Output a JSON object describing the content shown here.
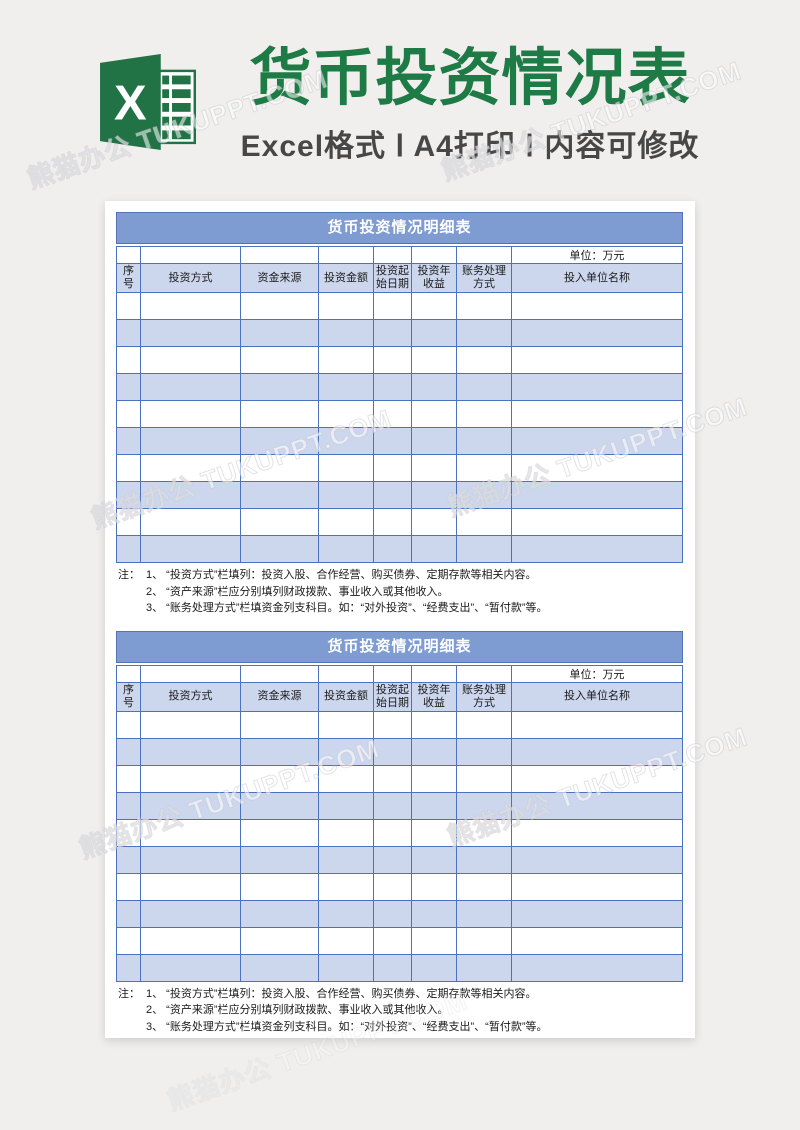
{
  "header": {
    "title": "货币投资情况表",
    "subtitle": "Excel格式 Ⅰ A4打印 Ⅰ 内容可修改",
    "logo_letter": "X"
  },
  "watermark": {
    "text": "熊猫办公 TUKUPPT.COM"
  },
  "tables": [
    {
      "title": "货币投资情况明细表",
      "unit_label": "单位：万元",
      "columns": [
        "序号",
        "投资方式",
        "资金来源",
        "投资金额",
        "投资起始日期",
        "投资年收益",
        "账务处理方式",
        "投入单位名称"
      ],
      "empty_row_count": 10,
      "notes_label": "注：",
      "notes": [
        "1、 “投资方式”栏填列：投资入股、合作经营、购买债券、定期存款等相关内容。",
        "2、 “资产来源”栏应分别填列财政拨款、事业收入或其他收入。",
        "3、 “账务处理方式”栏填资金列支科目。如：“对外投资”、“经费支出”、“暂付款”等。"
      ]
    },
    {
      "title": "货币投资情况明细表",
      "unit_label": "单位：万元",
      "columns": [
        "序号",
        "投资方式",
        "资金来源",
        "投资金额",
        "投资起始日期",
        "投资年收益",
        "账务处理方式",
        "投入单位名称"
      ],
      "empty_row_count": 10,
      "notes_label": "注：",
      "notes": [
        "1、 “投资方式”栏填列：投资入股、合作经营、购买债券、定期存款等相关内容。",
        "2、 “资产来源”栏应分别填列财政拨款、事业收入或其他收入。",
        "3、 “账务处理方式”栏填资金列支科目。如：“对外投资”、“经费支出”、“暂付款”等。"
      ]
    }
  ],
  "colors": {
    "excel_green": "#217346",
    "title_green": "#1e7b46",
    "subtitle_gray": "#474747",
    "table_title_bar": "#7e9bd2",
    "cell_blue": "#ccd7ee",
    "grid_border": "#4a72bf",
    "page_bg": "#f0efee"
  }
}
